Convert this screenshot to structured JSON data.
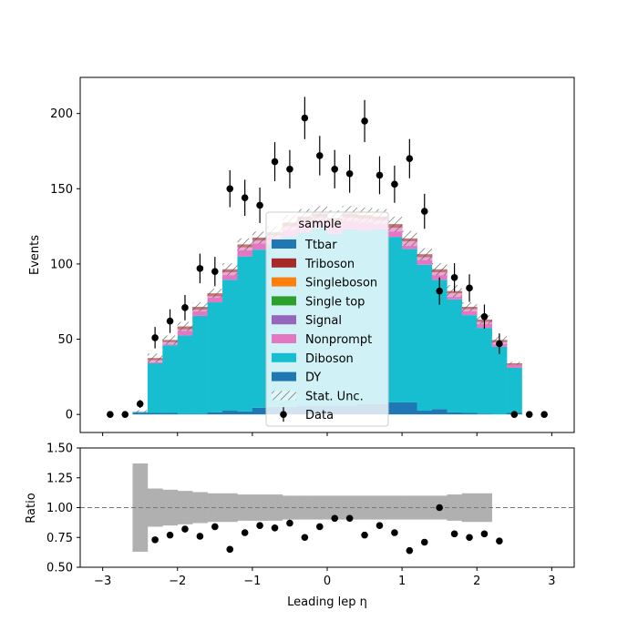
{
  "colors": {
    "Ttbar": "#1f77b4",
    "Triboson": "#a52a2a",
    "Singleboson": "#ff7f0e",
    "Single top": "#2ca02c",
    "Signal": "#9467bd",
    "Nonprompt": "#e377c2",
    "Diboson": "#17becf",
    "DY": "#1f77b4",
    "ratio_band": "#b0b0b0"
  },
  "chart_data": [
    {
      "type": "bar",
      "stacked": true,
      "xlim": [
        -3.3,
        3.3
      ],
      "ylim": [
        -12,
        224
      ],
      "ylabel": "Events",
      "xticks": [
        -3,
        -2,
        -1,
        0,
        1,
        2,
        3
      ],
      "yticks": [
        0,
        50,
        100,
        150,
        200
      ],
      "bin_edges": [
        -2.6,
        -2.4,
        -2.2,
        -2.0,
        -1.8,
        -1.6,
        -1.4,
        -1.2,
        -1.0,
        -0.8,
        -0.6,
        -0.4,
        -0.2,
        0.0,
        0.2,
        0.4,
        0.6,
        0.8,
        1.0,
        1.2,
        1.4,
        1.6,
        1.8,
        2.0,
        2.2,
        2.4,
        2.6
      ],
      "stack_order": [
        "DY",
        "Diboson",
        "Nonprompt",
        "Signal",
        "Single top",
        "Singleboson",
        "Triboson",
        "Ttbar"
      ],
      "series": [
        {
          "name": "DY",
          "values": [
            1.5,
            1,
            1,
            0.5,
            0.5,
            1.5,
            2.5,
            2,
            4.5,
            5,
            5,
            6,
            6,
            6,
            6,
            7,
            7,
            8,
            8,
            2.5,
            3.5,
            1.5,
            1,
            0.5,
            0,
            1
          ]
        },
        {
          "name": "Diboson",
          "values": [
            0.5,
            33,
            45,
            52,
            65,
            73,
            87,
            103,
            105,
            108,
            113,
            115,
            118,
            114,
            117,
            115,
            116,
            110,
            102,
            97,
            86,
            75,
            65,
            57,
            45,
            30
          ]
        },
        {
          "name": "Nonprompt",
          "values": [
            0,
            2,
            2,
            4,
            4,
            4,
            5,
            6,
            6,
            6,
            7,
            8,
            7,
            8,
            8,
            8,
            6,
            6,
            5,
            5,
            5,
            4,
            4,
            4,
            3,
            2
          ]
        },
        {
          "name": "Signal",
          "values": [
            0,
            0,
            0,
            0,
            0,
            0,
            0,
            0,
            0,
            0,
            0,
            0,
            0,
            0,
            0,
            0,
            0,
            0,
            0,
            0,
            0,
            0,
            0,
            0,
            0,
            0
          ]
        },
        {
          "name": "Single top",
          "values": [
            0,
            0,
            0,
            0,
            0,
            0,
            0,
            0,
            0,
            0,
            0,
            0,
            0,
            0,
            0,
            0,
            0,
            0,
            0,
            0,
            0,
            0,
            0,
            0,
            0,
            0
          ]
        },
        {
          "name": "Singleboson",
          "values": [
            0,
            0,
            0,
            0,
            0,
            0,
            0,
            0,
            0,
            0,
            0,
            0,
            0,
            0,
            0,
            0,
            0,
            0,
            0,
            0,
            0,
            0,
            0,
            0,
            0,
            0
          ]
        },
        {
          "name": "Triboson",
          "values": [
            0,
            1.5,
            1.5,
            2,
            2,
            2,
            2,
            2,
            2,
            2,
            2.5,
            2.5,
            2.5,
            2.5,
            2.5,
            2.5,
            2.5,
            2.5,
            2,
            2,
            2,
            1.5,
            1.5,
            1.5,
            1.5,
            1
          ]
        },
        {
          "name": "Ttbar",
          "values": [
            0,
            0,
            0,
            0,
            0,
            0,
            0,
            0,
            0,
            0,
            0,
            0,
            0,
            0,
            0,
            0,
            0,
            0,
            0,
            0,
            0,
            0,
            0,
            0,
            0,
            0
          ]
        }
      ],
      "stat_unc": [
        1,
        3,
        3,
        3,
        3,
        3,
        4,
        4,
        4,
        4,
        5,
        5,
        5,
        5,
        5,
        5,
        5,
        5,
        5,
        4,
        4,
        4,
        3,
        3,
        3,
        1
      ],
      "data_points": {
        "x": [
          -2.9,
          -2.7,
          -2.5,
          -2.3,
          -2.1,
          -1.9,
          -1.7,
          -1.5,
          -1.3,
          -1.1,
          -0.9,
          -0.7,
          -0.5,
          -0.3,
          -0.1,
          0.1,
          0.3,
          0.5,
          0.7,
          0.9,
          1.1,
          1.3,
          1.5,
          1.7,
          1.9,
          2.1,
          2.3,
          2.5,
          2.7,
          2.9
        ],
        "y": [
          0,
          0,
          7,
          51,
          62,
          71,
          97,
          95,
          150,
          144,
          139,
          168,
          163,
          197,
          172,
          163,
          160,
          195,
          159,
          153,
          170,
          135,
          82,
          91,
          84,
          65,
          47,
          0,
          0,
          0
        ]
      },
      "legend": {
        "title": "sample",
        "placement": "center",
        "entries": [
          "Ttbar",
          "Triboson",
          "Singleboson",
          "Single top",
          "Signal",
          "Nonprompt",
          "Diboson",
          "DY",
          "Stat. Unc.",
          "Data"
        ]
      }
    },
    {
      "type": "scatter",
      "xlim": [
        -3.3,
        3.3
      ],
      "ylim": [
        0.5,
        1.5
      ],
      "xlabel": "Leading lep η",
      "ylabel": "Ratio",
      "xticks": [
        -3,
        -2,
        -1,
        0,
        1,
        2,
        3
      ],
      "yticks": [
        0.5,
        0.75,
        1.0,
        1.25,
        1.5
      ],
      "ytick_labels": [
        "0.50",
        "0.75",
        "1.00",
        "1.25",
        "1.50"
      ],
      "reference_line": 1.0,
      "band_edges": [
        -2.6,
        -2.4,
        -2.2,
        -2.0,
        -1.8,
        -1.6,
        -1.4,
        -1.2,
        -1.0,
        -0.8,
        -0.6,
        -0.4,
        -0.2,
        0.0,
        0.2,
        0.4,
        0.6,
        0.8,
        1.0,
        1.2,
        1.4,
        1.6,
        1.8,
        2.0,
        2.2
      ],
      "band_half_width": [
        0.37,
        0.16,
        0.15,
        0.14,
        0.13,
        0.12,
        0.12,
        0.11,
        0.11,
        0.11,
        0.1,
        0.1,
        0.1,
        0.1,
        0.1,
        0.1,
        0.1,
        0.1,
        0.1,
        0.1,
        0.1,
        0.11,
        0.12,
        0.12
      ],
      "points": {
        "x": [
          -2.3,
          -2.1,
          -1.9,
          -1.7,
          -1.5,
          -1.3,
          -1.1,
          -0.9,
          -0.7,
          -0.5,
          -0.3,
          -0.1,
          0.1,
          0.3,
          0.5,
          0.7,
          0.9,
          1.1,
          1.3,
          1.5,
          1.7,
          1.9,
          2.1,
          2.3
        ],
        "y": [
          0.73,
          0.77,
          0.82,
          0.76,
          0.84,
          0.65,
          0.79,
          0.85,
          0.83,
          0.87,
          0.75,
          0.84,
          0.91,
          0.91,
          0.77,
          0.85,
          0.79,
          0.64,
          0.71,
          1.0,
          0.78,
          0.75,
          0.78,
          0.72
        ]
      }
    }
  ]
}
